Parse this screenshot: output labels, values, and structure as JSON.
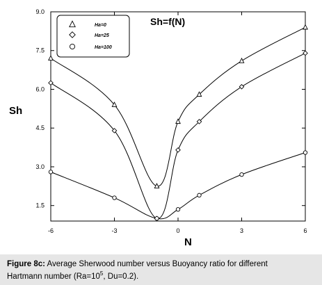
{
  "chart_data": {
    "type": "line",
    "title": "Sh=f(N)",
    "xlabel": "N",
    "ylabel": "Sh",
    "xlim": [
      -6,
      6
    ],
    "ylim": [
      0.9,
      9.0
    ],
    "x_ticks": [
      -6,
      -3,
      0,
      3,
      6
    ],
    "x_tick_labels": [
      "-6",
      "-3",
      "0",
      "3",
      "6"
    ],
    "y_ticks": [
      1.5,
      3.0,
      4.5,
      6.0,
      7.5,
      9.0
    ],
    "y_tick_labels": [
      "1.5",
      "3.0",
      "4.5",
      "6.0",
      "7.5",
      "9.0"
    ],
    "legend_position": "top-left",
    "grid": false,
    "series": [
      {
        "name": "Ha=0",
        "marker": "triangle",
        "x": [
          -6,
          -3,
          -1,
          0,
          1,
          3,
          6
        ],
        "y": [
          7.2,
          5.4,
          2.25,
          4.75,
          5.8,
          7.1,
          8.4
        ]
      },
      {
        "name": "Ha=25",
        "marker": "diamond",
        "x": [
          -6,
          -3,
          -1,
          0,
          1,
          3,
          6
        ],
        "y": [
          6.25,
          4.4,
          1.0,
          3.65,
          4.75,
          6.1,
          7.4
        ]
      },
      {
        "name": "Ha=100",
        "marker": "circle",
        "x": [
          -6,
          -3,
          -1,
          0,
          1,
          3,
          6
        ],
        "y": [
          2.8,
          1.8,
          1.0,
          1.35,
          1.9,
          2.7,
          3.55
        ]
      }
    ]
  },
  "caption": {
    "label": "Figure 8c:",
    "text_line1": "Average Sherwood number versus Buoyancy ratio for different",
    "text_line2_start": "Hartmann number (Ra=10",
    "ra_exponent": "5",
    "text_line2_end": ", Du=0.2)."
  }
}
